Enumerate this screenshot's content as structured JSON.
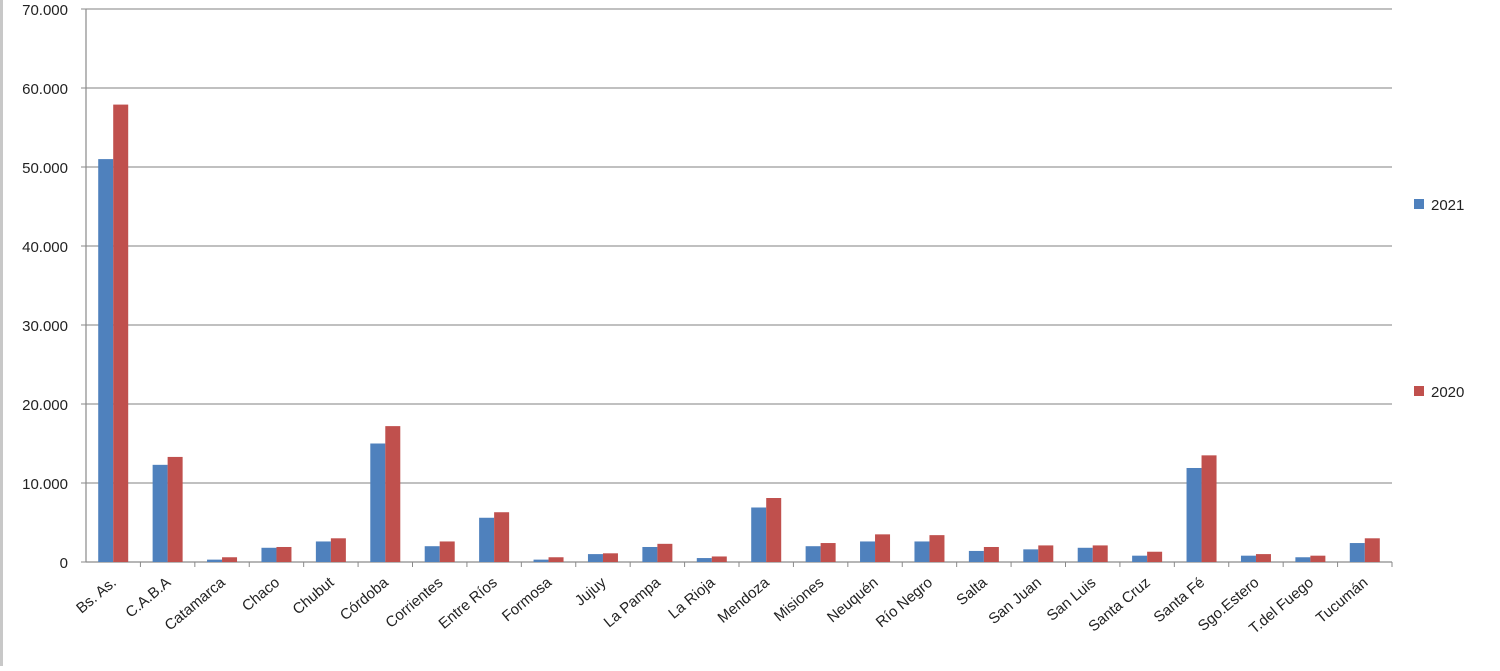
{
  "chart_data": {
    "type": "bar",
    "title": "",
    "xlabel": "",
    "ylabel": "",
    "ylim": [
      0,
      70000
    ],
    "yticks": [
      0,
      10000,
      20000,
      30000,
      40000,
      50000,
      60000,
      70000
    ],
    "ytick_labels": [
      "0",
      "10.000",
      "20.000",
      "30.000",
      "40.000",
      "50.000",
      "60.000",
      "70.000"
    ],
    "grid": true,
    "legend_position": "right",
    "categories": [
      "Bs. As.",
      "C.A.B.A",
      "Catamarca",
      "Chaco",
      "Chubut",
      "Córdoba",
      "Corrientes",
      "Entre Ríos",
      "Formosa",
      "Jujuy",
      "La Pampa",
      "La Rioja",
      "Mendoza",
      "Misiones",
      "Neuquén",
      "Río Negro",
      "Salta",
      "San Juan",
      "San Luis",
      "Santa Cruz",
      "Santa Fé",
      "Sgo.Estero",
      "T.del Fuego",
      "Tucumán"
    ],
    "series": [
      {
        "name": "2021",
        "color": "#4f81bd",
        "values": [
          51000,
          12300,
          300,
          1800,
          2600,
          15000,
          2000,
          5600,
          300,
          1000,
          1900,
          500,
          6900,
          2000,
          2600,
          2600,
          1400,
          1600,
          1800,
          800,
          11900,
          800,
          600,
          2400
        ]
      },
      {
        "name": "2020",
        "color": "#c0504d",
        "values": [
          57900,
          13300,
          600,
          1900,
          3000,
          17200,
          2600,
          6300,
          600,
          1100,
          2300,
          700,
          8100,
          2400,
          3500,
          3400,
          1900,
          2100,
          2100,
          1300,
          13500,
          1000,
          800,
          3000
        ]
      }
    ]
  }
}
